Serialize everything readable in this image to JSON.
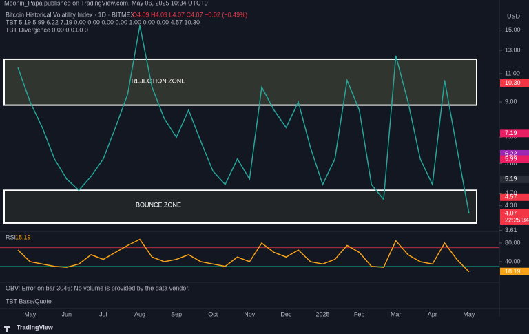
{
  "header": {
    "publisher": "Moonin_Papa published on TradingView.com, May 06, 2025 10:34 UTC+9",
    "symbol": "Bitcoin Historical Volatility Index · 1D · BITMEX",
    "ohlc": "O4.09 H4.09 L4.07 C4.07 −0.02 (−0.49%)",
    "tbt": "TBT 5.19 5.99 6.22 7.19 0.00 0.00 0.00 0.00 1.00 0.00 0.00 4.57 10.30",
    "tbt_divergence": "TBT Divergence 0.00 0 0.00 0",
    "currency": "USD"
  },
  "notes": {
    "obv": "OBV: Error on bar 3046: No volume is provided by the data vendor.",
    "tbt_base": "TBT Base/Quote",
    "brand": "TradingView"
  },
  "chart_data": [
    {
      "type": "line",
      "log_scale": true,
      "categories": [
        null,
        "May",
        null,
        null,
        "Jun",
        null,
        null,
        "Jul",
        null,
        null,
        "Aug",
        null,
        null,
        "Sep",
        null,
        null,
        "Oct",
        null,
        null,
        "Nov",
        null,
        null,
        "Dec",
        null,
        null,
        "2025",
        null,
        null,
        "Feb",
        null,
        null,
        "Mar",
        null,
        null,
        "Apr",
        null,
        null,
        "May"
      ],
      "series": [
        {
          "name": "Bitcoin Historical Volatility Index",
          "color": "#26a69a",
          "values": [
            11.5,
            9.0,
            7.5,
            6.0,
            5.2,
            4.8,
            5.3,
            6.0,
            7.5,
            9.5,
            15.5,
            10.0,
            8.0,
            7.0,
            8.5,
            6.8,
            5.5,
            5.0,
            6.0,
            5.2,
            10.0,
            8.5,
            7.5,
            9.0,
            6.5,
            5.0,
            6.0,
            10.5,
            8.5,
            5.0,
            4.5,
            12.5,
            9.0,
            6.0,
            5.0,
            10.5,
            6.5,
            4.07
          ]
        }
      ],
      "ylim": [
        3.6,
        17.7
      ],
      "yticks": [
        {
          "value": 15,
          "label": "15.00"
        },
        {
          "value": 13,
          "label": "13.00"
        },
        {
          "value": 11,
          "label": "11.00"
        },
        {
          "value": 9,
          "label": "9.00"
        },
        {
          "value": 7,
          "label": "7.00"
        },
        {
          "value": 5.8,
          "label": "5.80"
        },
        {
          "value": 4.7,
          "label": "4.70"
        },
        {
          "value": 4.3,
          "label": "4.30"
        },
        {
          "value": 3.61,
          "label": "3.61"
        }
      ],
      "annotations": [
        {
          "label": "REJECTION ZONE",
          "range": [
            8.8,
            12.2
          ]
        },
        {
          "label": "BOUNCE ZONE",
          "range": [
            3.8,
            4.8
          ]
        }
      ],
      "price_labels": [
        {
          "value": 10.3,
          "label": "10.30",
          "color": "#f23645"
        },
        {
          "value": 7.19,
          "label": "7.19",
          "color": "#e91e63"
        },
        {
          "value": 6.22,
          "label": "6.22",
          "color": "#9c27b0"
        },
        {
          "value": 5.99,
          "label": "5.99",
          "color": "#e91e63"
        },
        {
          "value": 5.19,
          "label": "5.19",
          "color": "#2a2e39"
        },
        {
          "value": 4.57,
          "label": "4.57",
          "color": "#f23645"
        }
      ],
      "countdown": "22:25:34"
    },
    {
      "type": "line",
      "title": "RSI",
      "categories": [
        null,
        "May",
        null,
        null,
        "Jun",
        null,
        null,
        "Jul",
        null,
        null,
        "Aug",
        null,
        null,
        "Sep",
        null,
        null,
        "Oct",
        null,
        null,
        "Nov",
        null,
        null,
        "Dec",
        null,
        null,
        "2025",
        null,
        null,
        "Feb",
        null,
        null,
        "Mar",
        null,
        null,
        "Apr",
        null,
        null,
        "May"
      ],
      "series": [
        {
          "name": "RSI",
          "color": "#f7a21b",
          "values": [
            65,
            40,
            35,
            30,
            28,
            35,
            55,
            45,
            60,
            75,
            88,
            50,
            40,
            45,
            55,
            40,
            35,
            30,
            50,
            40,
            80,
            60,
            50,
            65,
            40,
            35,
            45,
            75,
            60,
            30,
            28,
            85,
            55,
            40,
            35,
            80,
            45,
            18.19
          ]
        }
      ],
      "ylim": [
        0,
        100
      ],
      "yticks": [
        {
          "value": 80,
          "label": "80.00"
        },
        {
          "value": 40,
          "label": "40.00"
        }
      ],
      "levels": [
        70,
        30
      ]
    }
  ]
}
